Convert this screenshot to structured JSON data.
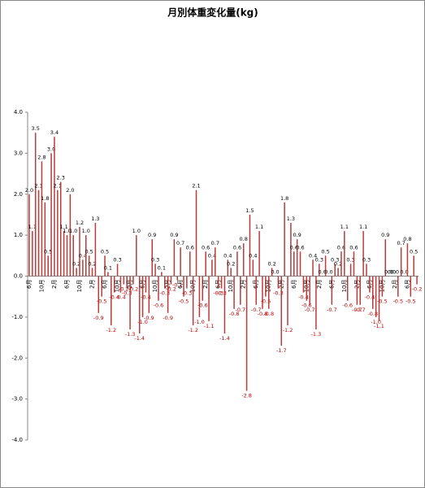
{
  "chart_data": {
    "type": "bar",
    "title": "月別体重変化量(kg)",
    "categories": [
      "6月",
      null,
      null,
      null,
      "10月",
      null,
      null,
      null,
      "2月",
      null,
      null,
      null,
      "6月",
      null,
      null,
      null,
      "10月",
      null,
      null,
      null,
      "2月",
      null,
      null,
      null,
      "6月",
      null,
      null,
      null,
      "10月",
      null,
      null,
      null,
      "2月",
      null,
      null,
      null,
      "6月",
      null,
      null,
      null,
      "10月",
      null,
      null,
      null,
      "2月",
      null,
      null,
      null,
      "6月",
      null,
      null,
      null,
      "10月",
      null,
      null,
      null,
      "2月",
      null,
      null,
      null,
      "6月",
      null,
      null,
      null,
      "10月",
      null,
      null,
      null,
      "2月",
      null,
      null,
      null,
      "6月",
      null,
      null,
      null,
      "10月",
      null,
      null,
      null,
      "2月",
      null,
      null,
      null,
      "6月",
      null,
      null,
      null,
      "10月",
      null,
      null,
      null,
      "2月",
      null,
      null,
      null,
      "6月",
      null,
      null,
      null,
      "10月",
      null,
      null,
      null,
      "2月",
      null,
      null,
      null,
      "6月",
      null,
      null,
      null,
      "10月",
      null,
      null,
      null,
      "2月",
      null,
      null,
      null,
      "6月",
      null,
      null,
      null
    ],
    "values": [
      2.0,
      1.1,
      3.5,
      2.1,
      2.8,
      1.8,
      0.5,
      3.0,
      3.4,
      2.1,
      2.3,
      1.1,
      1.0,
      2.0,
      1.0,
      0.2,
      1.2,
      0.4,
      1.0,
      0.5,
      0.2,
      1.3,
      -0.9,
      -0.5,
      0.5,
      0.1,
      -1.2,
      -0.4,
      0.3,
      -0.4,
      -0.2,
      -0.3,
      -1.3,
      -0.2,
      1.0,
      -1.4,
      -1.0,
      -0.4,
      -0.9,
      0.9,
      0.3,
      -0.6,
      0.1,
      -0.3,
      -0.9,
      -0.2,
      0.9,
      -0.1,
      0.7,
      -0.5,
      -0.3,
      0.6,
      -1.2,
      2.1,
      -1.0,
      -0.6,
      0.6,
      -1.1,
      0.4,
      0.7,
      -0.3,
      -0.3,
      -1.4,
      0.4,
      0.2,
      -0.8,
      0.6,
      -0.7,
      0.8,
      -2.8,
      1.5,
      0.4,
      -0.7,
      1.1,
      -0.8,
      -0.5,
      -0.8,
      0.2,
      0.0,
      -0.3,
      -1.7,
      1.8,
      -1.2,
      1.3,
      0.6,
      0.9,
      0.6,
      -0.4,
      -0.6,
      -0.7,
      0.4,
      -1.3,
      0.3,
      0.0,
      0.5,
      0.0,
      -0.7,
      0.3,
      0.2,
      0.6,
      1.1,
      -0.6,
      0.3,
      0.6,
      -0.7,
      -0.7,
      1.1,
      0.3,
      -0.4,
      -0.8,
      -1.0,
      -1.1,
      -0.5,
      0.9,
      0.0,
      0.0,
      0.0,
      -0.5,
      0.7,
      0.0,
      0.8,
      -0.5,
      0.5,
      -0.2
    ],
    "value_labels": [
      "2.0",
      "1.1",
      "3.5",
      "2.1",
      "2.8",
      "1.8",
      "0.5",
      "3.0",
      "3.4",
      "2.1",
      "2.3",
      "1.1",
      "1.0",
      "2.0",
      "1.0",
      "0.2",
      "1.2",
      "0.4",
      "1.0",
      "0.5",
      "0.2",
      "1.3",
      "-0.9",
      "-0.5",
      "0.5",
      "0.1",
      "-1.2",
      "-0.4",
      "0.3",
      "-0.4",
      "-0.2",
      "-0.3",
      "-1.3",
      "-0.2",
      "1.0",
      "-1.4",
      "-1.0",
      "-0.4",
      "-0.9",
      "0.9",
      "0.3",
      "-0.6",
      "0.1",
      "-0.3",
      "-0.9",
      "-0.2",
      "0.9",
      "-0.1",
      "0.7",
      "-0.5",
      "-0.3",
      "0.6",
      "-1.2",
      "2.1",
      "-1.0",
      "-0.6",
      "0.6",
      "-1.1",
      "0.4",
      "0.7",
      "-0.3",
      "-0.3",
      "-1.4",
      "0.4",
      "0.2",
      "-0.8",
      "0.6",
      "-0.7",
      "0.8",
      "-2.8",
      "1.5",
      "0.4",
      "-0.7",
      "1.1",
      "-0.8",
      "-0.5",
      "-0.8",
      "0.2",
      "0.0",
      "-0.3",
      "-1.7",
      "1.8",
      "-1.2",
      "1.3",
      "0.6",
      "0.9",
      "0.6",
      "-0.4",
      "-0.6",
      "-0.7",
      "0.4",
      "-1.3",
      "0.3",
      "0.0",
      "0.5",
      "0.0",
      "-0.7",
      "0.3",
      "0.2",
      "0.6",
      "1.1",
      "-0.6",
      "0.3",
      "0.6",
      "-0.7",
      "-0.7",
      "1.1",
      "0.3",
      "-0.4",
      "-0.8",
      "-1.0",
      "-1.1",
      "-0.5",
      "0.9",
      "0.0",
      "0.0",
      "0.0",
      "-0.5",
      "0.7",
      "0.0",
      "0.8",
      "-0.5",
      "0.5",
      "-0.2"
    ],
    "color": "#b83c3a",
    "ylim": [
      -4,
      4
    ],
    "yticks": [
      {
        "value": -4,
        "label": "-4.0"
      },
      {
        "value": -3,
        "label": "-3.0"
      },
      {
        "value": -2,
        "label": "-2.0"
      },
      {
        "value": -1,
        "label": "-1.0"
      },
      {
        "value": 0,
        "label": "0.0"
      },
      {
        "value": 1,
        "label": "1.0"
      },
      {
        "value": 2,
        "label": "2.0"
      },
      {
        "value": 3,
        "label": "3.0"
      },
      {
        "value": 4,
        "label": "4.0"
      }
    ],
    "grid": false
  }
}
